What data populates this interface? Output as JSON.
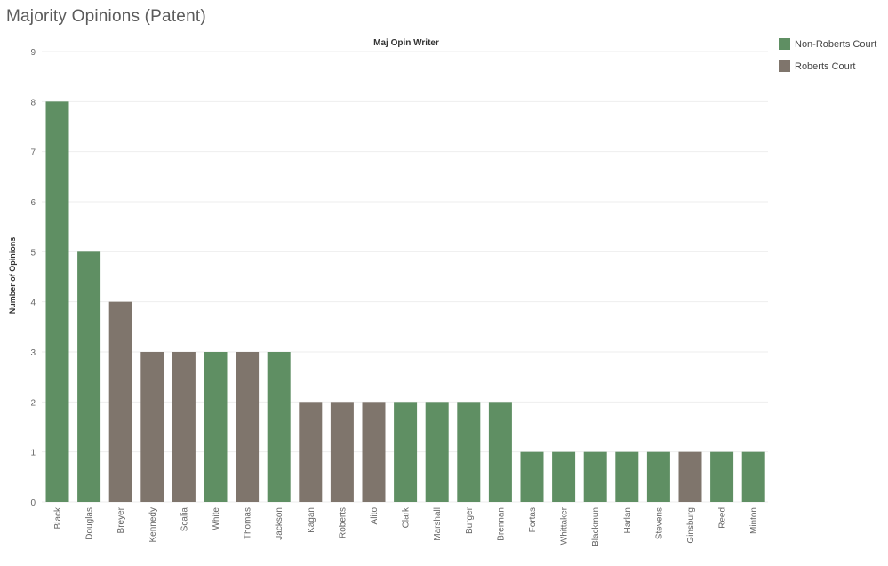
{
  "page": {
    "title": "Majority Opinions (Patent)"
  },
  "legend": {
    "items": [
      {
        "label": "Non-Roberts Court",
        "color": "#5f8f63"
      },
      {
        "label": "Roberts Court",
        "color": "#7f756c"
      }
    ]
  },
  "colors": {
    "Non-Roberts Court": "#5f8f63",
    "Roberts Court": "#7f756c",
    "gridline": "#eeeeee",
    "axis_text": "#666666"
  },
  "chart_data": {
    "type": "bar",
    "title": "Maj Opin Writer",
    "xlabel": "",
    "ylabel": "Number of Opinions",
    "ylim": [
      0,
      9
    ],
    "yticks": [
      0,
      1,
      2,
      3,
      4,
      5,
      6,
      7,
      8,
      9
    ],
    "grid": true,
    "legend_position": "top-right",
    "categories": [
      "Black",
      "Douglas",
      "Breyer",
      "Kennedy",
      "Scalia",
      "White",
      "Thomas",
      "Jackson",
      "Kagan",
      "Roberts",
      "Alito",
      "Clark",
      "Marshall",
      "Burger",
      "Brennan",
      "Fortas",
      "Whittaker",
      "Blackmun",
      "Harlan",
      "Stevens",
      "Ginsburg",
      "Reed",
      "Minton"
    ],
    "values": [
      8,
      5,
      4,
      3,
      3,
      3,
      3,
      3,
      2,
      2,
      2,
      2,
      2,
      2,
      2,
      1,
      1,
      1,
      1,
      1,
      1,
      1,
      1
    ],
    "court": [
      "Non-Roberts Court",
      "Non-Roberts Court",
      "Roberts Court",
      "Roberts Court",
      "Roberts Court",
      "Non-Roberts Court",
      "Roberts Court",
      "Non-Roberts Court",
      "Roberts Court",
      "Roberts Court",
      "Roberts Court",
      "Non-Roberts Court",
      "Non-Roberts Court",
      "Non-Roberts Court",
      "Non-Roberts Court",
      "Non-Roberts Court",
      "Non-Roberts Court",
      "Non-Roberts Court",
      "Non-Roberts Court",
      "Non-Roberts Court",
      "Roberts Court",
      "Non-Roberts Court",
      "Non-Roberts Court"
    ]
  }
}
